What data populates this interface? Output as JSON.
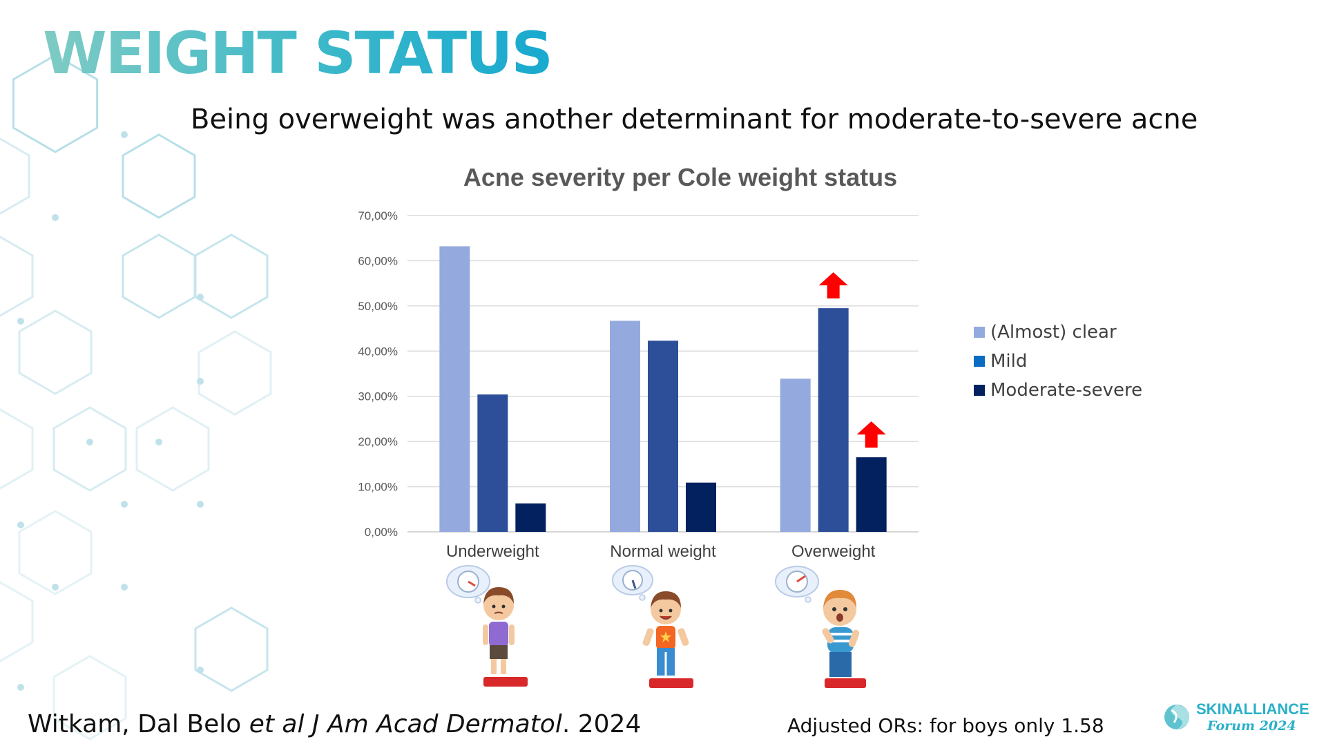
{
  "slide": {
    "title": "WEIGHT STATUS",
    "subtitle": "Being overweight was another determinant for moderate-to-severe acne",
    "citation_plain_1": "Witkam, Dal Belo ",
    "citation_italic": "et al J Am Acad Dermatol",
    "citation_plain_2": ". 2024",
    "footnote": "Adjusted ORs: for boys only 1.58",
    "logo_name": "SKINALLIANCE",
    "logo_sub": "Forum 2024"
  },
  "colors": {
    "almost_clear": "#94aade",
    "mild": "#2d4f9a",
    "moderate_severe": "#03205f",
    "arrow": "#ff0000",
    "accent": "#2ab3c6"
  },
  "icons": [
    "hexagon-pattern",
    "up-arrow-icon",
    "weighing-scale-icon",
    "child-on-scale-illustration",
    "skinalliance-logo-icon"
  ],
  "chart_data": {
    "type": "bar",
    "title": "Acne severity per Cole weight status",
    "categories": [
      "Underweight",
      "Normal weight",
      "Overweight"
    ],
    "series": [
      {
        "name": "(Almost) clear",
        "values": [
          63.2,
          46.7,
          33.9
        ],
        "color": "#94aade"
      },
      {
        "name": "Mild",
        "values": [
          30.4,
          42.3,
          49.5
        ],
        "color": "#2d4f9a"
      },
      {
        "name": "Moderate-severe",
        "values": [
          6.3,
          10.9,
          16.5
        ],
        "color": "#03205f"
      }
    ],
    "ylim": [
      0,
      70
    ],
    "yticks": [
      "0,00%",
      "10,00%",
      "20,00%",
      "30,00%",
      "40,00%",
      "50,00%",
      "60,00%",
      "70,00%"
    ],
    "xlabel": "",
    "ylabel": "",
    "grid": true,
    "legend_position": "right",
    "annotations": [
      {
        "type": "up-arrow",
        "category": "Overweight",
        "series": "Mild"
      },
      {
        "type": "up-arrow",
        "category": "Overweight",
        "series": "Moderate-severe"
      }
    ]
  }
}
